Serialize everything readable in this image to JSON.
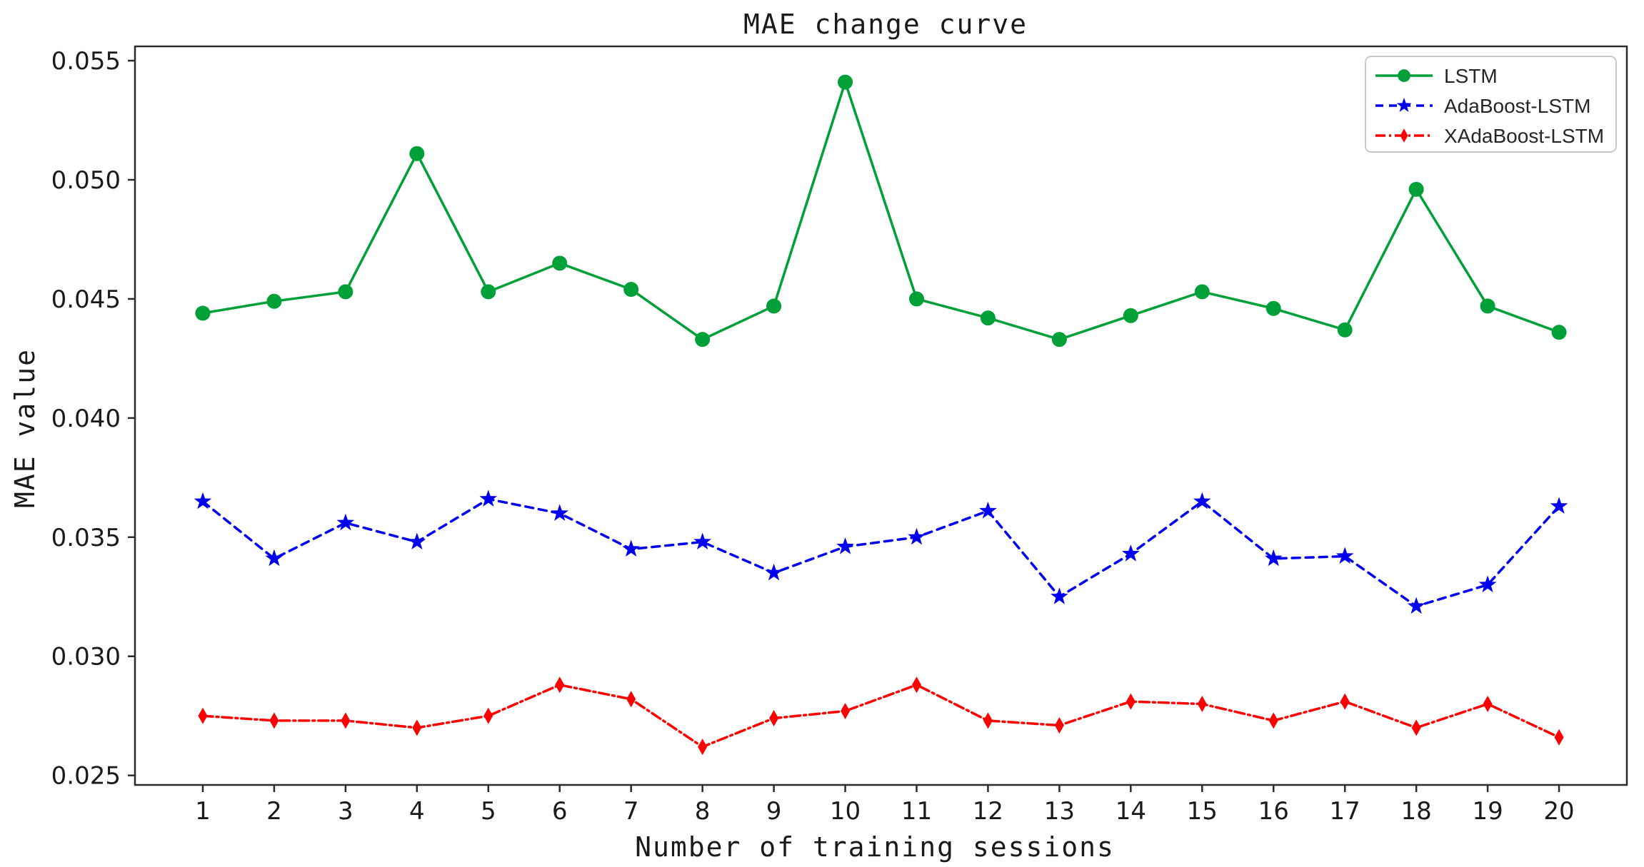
{
  "figure_title": "MAE change curve",
  "chart_data": {
    "type": "line",
    "title": "MAE change curve",
    "xlabel": "Number of training sessions",
    "ylabel": "MAE value",
    "x": [
      1,
      2,
      3,
      4,
      5,
      6,
      7,
      8,
      9,
      10,
      11,
      12,
      13,
      14,
      15,
      16,
      17,
      18,
      19,
      20
    ],
    "xticks": [
      1,
      2,
      3,
      4,
      5,
      6,
      7,
      8,
      9,
      10,
      11,
      12,
      13,
      14,
      15,
      16,
      17,
      18,
      19,
      20
    ],
    "yticks": [
      0.025,
      0.03,
      0.035,
      0.04,
      0.045,
      0.05,
      0.055
    ],
    "xlim": [
      0.05,
      20.95
    ],
    "ylim": [
      0.0246,
      0.0556
    ],
    "grid": false,
    "legend_position": "upper right",
    "axis_color": "#2b2b2b",
    "series": [
      {
        "name": "LSTM",
        "color": "#00a038",
        "linestyle": "solid",
        "marker": "circle",
        "values": [
          0.0444,
          0.0449,
          0.0453,
          0.0511,
          0.0453,
          0.0465,
          0.0454,
          0.0433,
          0.0447,
          0.0541,
          0.045,
          0.0442,
          0.0433,
          0.0443,
          0.0453,
          0.0446,
          0.0437,
          0.0496,
          0.0447,
          0.0436
        ]
      },
      {
        "name": "AdaBoost-LSTM",
        "color": "#0000ee",
        "linestyle": "dashed",
        "marker": "star",
        "values": [
          0.0365,
          0.0341,
          0.0356,
          0.0348,
          0.0366,
          0.036,
          0.0345,
          0.0348,
          0.0335,
          0.0346,
          0.035,
          0.0361,
          0.0325,
          0.0343,
          0.0365,
          0.0341,
          0.0342,
          0.0321,
          0.033,
          0.0363
        ]
      },
      {
        "name": "XAdaBoost-LSTM",
        "color": "#ff0000",
        "linestyle": "dashdot",
        "marker": "diamond",
        "values": [
          0.0275,
          0.0273,
          0.0273,
          0.027,
          0.0275,
          0.0288,
          0.0282,
          0.0262,
          0.0274,
          0.0277,
          0.0288,
          0.0273,
          0.0271,
          0.0281,
          0.028,
          0.0273,
          0.0281,
          0.027,
          0.028,
          0.0266
        ]
      }
    ]
  }
}
